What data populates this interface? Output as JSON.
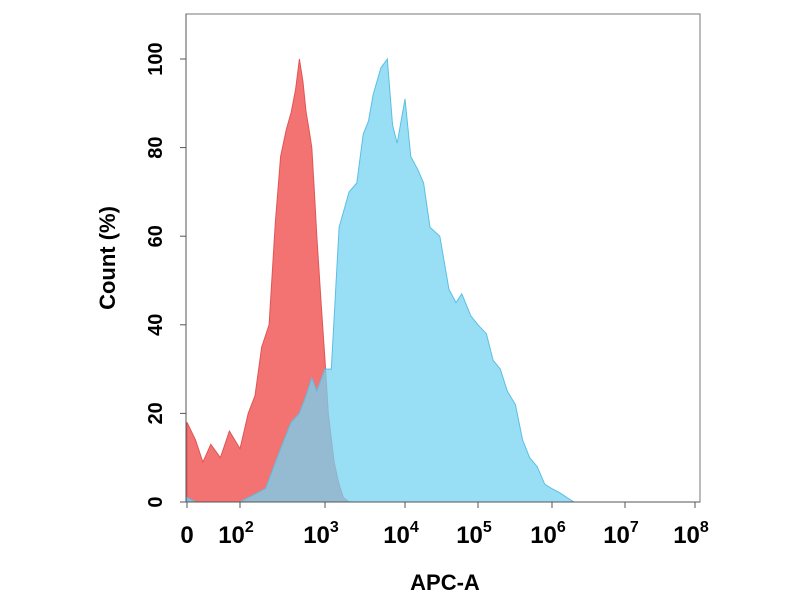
{
  "chart_data": {
    "type": "area",
    "xlabel": "APC-A",
    "ylabel": "Count  (%)",
    "x_scale": "log",
    "xlim": [
      0,
      100000000
    ],
    "ylim": [
      0,
      110
    ],
    "x_tick_labels": [
      {
        "base": "0",
        "exp": ""
      },
      {
        "base": "10",
        "exp": "2"
      },
      {
        "base": "10",
        "exp": "3"
      },
      {
        "base": "10",
        "exp": "4"
      },
      {
        "base": "10",
        "exp": "5"
      },
      {
        "base": "10",
        "exp": "6"
      },
      {
        "base": "10",
        "exp": "7"
      },
      {
        "base": "10",
        "exp": "8"
      }
    ],
    "y_ticks": [
      0,
      20,
      40,
      60,
      80,
      100
    ],
    "grid": false,
    "legend": "none",
    "series": [
      {
        "color": "#f26b6b",
        "x": [
          0,
          16,
          30,
          45,
          63,
          80,
          100,
          125,
          150,
          180,
          220,
          260,
          300,
          350,
          400,
          450,
          500,
          550,
          600,
          650,
          700,
          750,
          800,
          900,
          1000,
          1100,
          1300,
          1500,
          1700,
          2000
        ],
        "y": [
          18,
          14,
          9,
          13,
          10,
          16,
          12,
          20,
          24,
          35,
          40,
          63,
          78,
          84,
          88,
          93,
          100,
          95,
          88,
          84,
          80,
          70,
          60,
          45,
          32,
          20,
          9,
          4,
          1,
          0
        ]
      },
      {
        "color": "#76d3f2",
        "x": [
          0,
          16,
          100,
          200,
          300,
          400,
          500,
          600,
          700,
          800,
          1000,
          1200,
          1500,
          2000,
          2500,
          3000,
          3500,
          4000,
          5000,
          6000,
          7000,
          8000,
          10000,
          12000,
          15000,
          18000,
          22000,
          30000,
          40000,
          50000,
          60000,
          80000,
          100000,
          130000,
          160000,
          200000,
          250000,
          320000,
          400000,
          500000,
          630000,
          800000,
          1000000,
          1300000,
          1600000,
          2000000
        ],
        "y": [
          1,
          0,
          0,
          3,
          12,
          18,
          20,
          24,
          28,
          25,
          30,
          30,
          62,
          70,
          72,
          83,
          86,
          92,
          98,
          100,
          85,
          81,
          91,
          78,
          75,
          72,
          62,
          60,
          48,
          45,
          47,
          42,
          40,
          38,
          32,
          30,
          25,
          22,
          14,
          10,
          8,
          4,
          3,
          2,
          1,
          0
        ]
      }
    ]
  }
}
